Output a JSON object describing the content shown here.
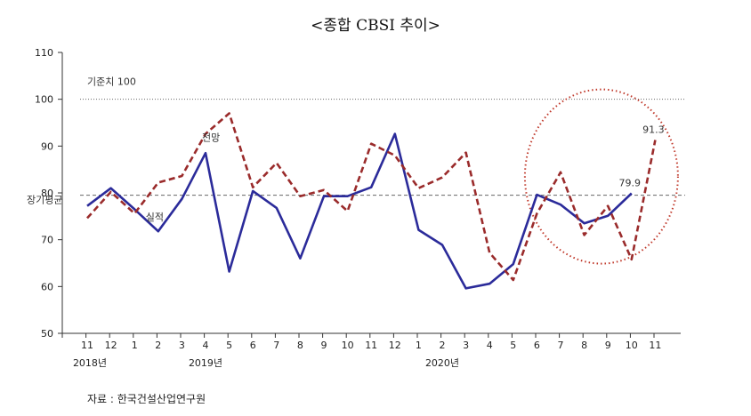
{
  "title": "<종합 CBSI 추이>",
  "source": "자료 : 한국건설산업연구원",
  "chart_data": {
    "type": "line",
    "title": "<종합 CBSI 추이>",
    "categories": [
      "11",
      "12",
      "1",
      "2",
      "3",
      "4",
      "5",
      "6",
      "7",
      "8",
      "9",
      "10",
      "11",
      "12",
      "1",
      "2",
      "3",
      "4",
      "5",
      "6",
      "7",
      "8",
      "9",
      "10",
      "11"
    ],
    "year_labels": [
      {
        "label": "2018년",
        "index": 0
      },
      {
        "label": "2019년",
        "index": 5
      },
      {
        "label": "2020년",
        "index": 15
      }
    ],
    "ylim": [
      50,
      110
    ],
    "yticks": [
      50,
      60,
      70,
      80,
      90,
      100,
      110
    ],
    "series": [
      {
        "name": "실적",
        "style": "solid",
        "color": "#2b2b9a",
        "values": [
          77.2,
          81,
          76.5,
          71.8,
          78.7,
          88.5,
          63.2,
          80.4,
          76.8,
          66,
          79.3,
          79.3,
          81.2,
          92.6,
          72.1,
          68.9,
          59.6,
          60.6,
          64.8,
          79.6,
          77.5,
          73.5,
          75.1,
          79.9,
          null
        ],
        "labels": {
          "23": "79.9"
        }
      },
      {
        "name": "전망",
        "style": "dashed",
        "color": "#9a2b2b",
        "values": [
          74.6,
          80.2,
          75.6,
          82.2,
          83.6,
          92.6,
          97,
          81.2,
          86.4,
          79.3,
          80.6,
          76.1,
          90.5,
          88,
          81,
          83.3,
          88.6,
          67.2,
          61.4,
          75.6,
          84.4,
          71,
          77.2,
          65.8,
          91.3
        ],
        "labels": {
          "24": "91.3"
        }
      }
    ],
    "reference_lines": [
      {
        "label": "기준치 100",
        "value": 100,
        "style": "dotted"
      },
      {
        "label": "장기평균",
        "value": 79.5,
        "style": "dashed"
      }
    ],
    "series_labels": [
      {
        "text": "전망",
        "series": 1,
        "index": 5
      },
      {
        "text": "실적",
        "series": 0,
        "index": 3
      }
    ],
    "highlight": {
      "from_index": 19,
      "to_index": 24
    },
    "grid": false,
    "legend": "none"
  }
}
